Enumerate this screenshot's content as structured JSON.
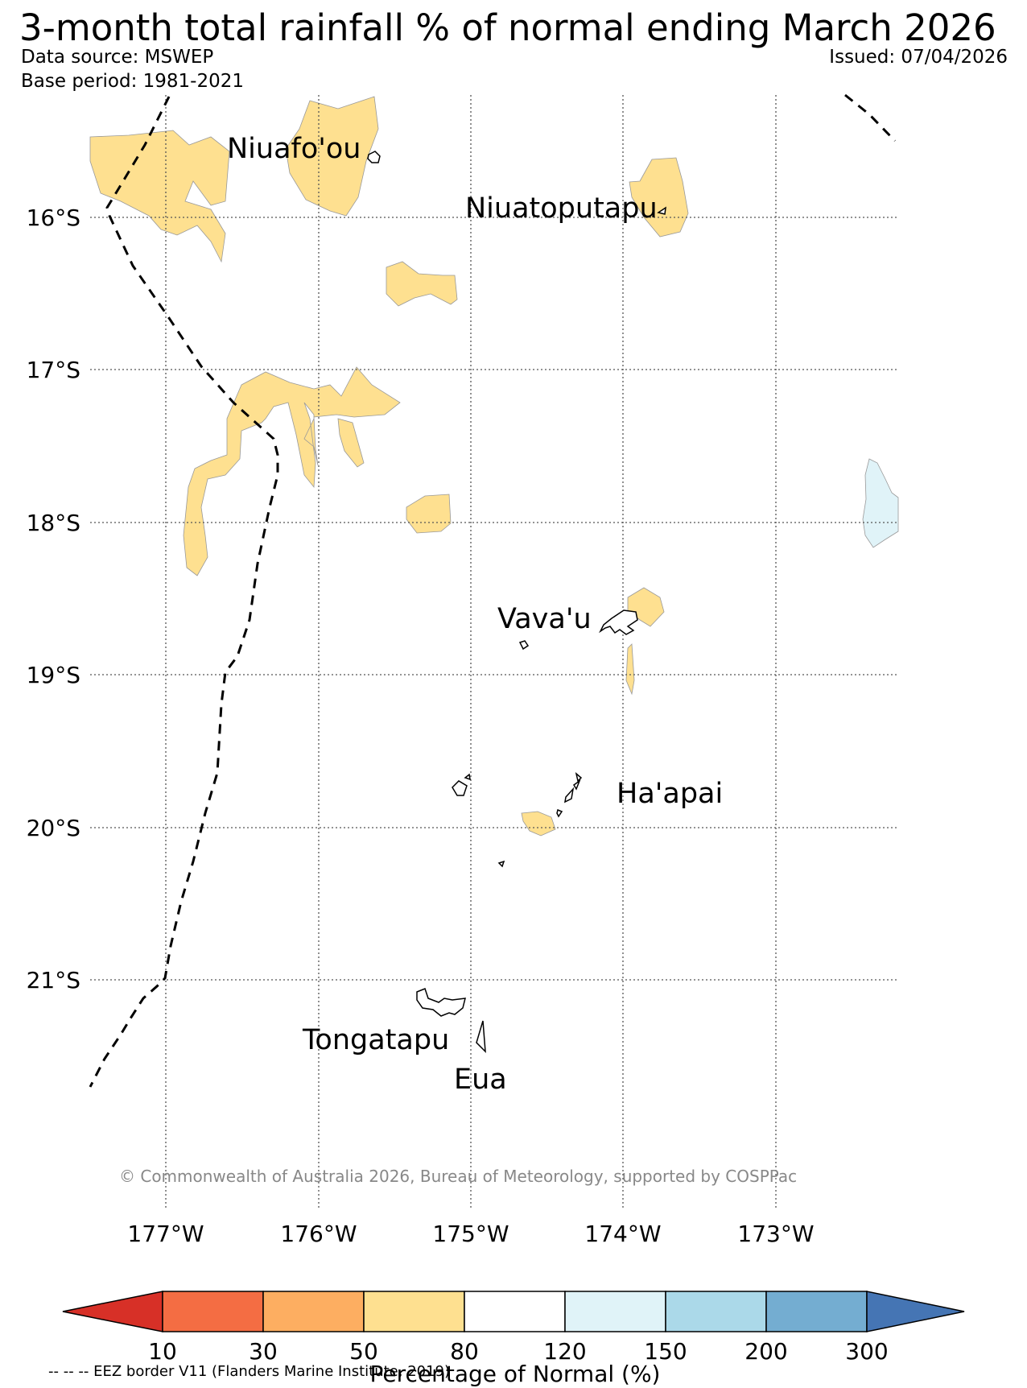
{
  "header": {
    "title": "3-month total rainfall % of normal ending March 2026",
    "data_source": "Data source: MSWEP",
    "base_period": "Base period: 1981-2021",
    "issued": "Issued: 07/04/2026"
  },
  "map": {
    "latitude_labels": [
      "16°S",
      "17°S",
      "18°S",
      "19°S",
      "20°S",
      "21°S"
    ],
    "longitude_labels": [
      "177°W",
      "176°W",
      "175°W",
      "174°W",
      "173°W"
    ],
    "places": [
      "Niuafo'ou",
      "Niuatoputapu",
      "Vava'u",
      "Ha'apai",
      "Tongatapu",
      "Eua"
    ],
    "copyright": "© Commonwealth of Australia 2026, Bureau of Meteorology, supported by COSPPac"
  },
  "colorbar": {
    "title": "Percentage of Normal (%)",
    "ticks": [
      "10",
      "30",
      "50",
      "80",
      "120",
      "150",
      "200",
      "300"
    ],
    "colors": [
      "#d73027",
      "#f46d43",
      "#fdae61",
      "#fee090",
      "#ffffff",
      "#e0f3f8",
      "#abd9e9",
      "#74add1",
      "#4575b4"
    ]
  },
  "footer": {
    "eez_legend": "-- -- -- EEZ border V11 (Flanders Marine Institute, 2019)"
  }
}
